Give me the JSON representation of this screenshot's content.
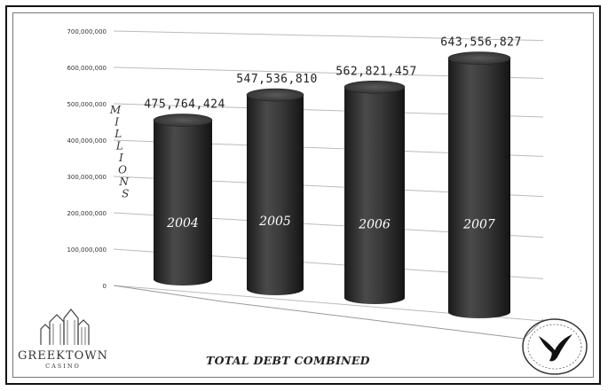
{
  "chart_data": {
    "type": "bar",
    "title": "TOTAL DEBT COMBINED",
    "ylabel": "MILLIONS",
    "categories": [
      "2004",
      "2005",
      "2006",
      "2007"
    ],
    "values": [
      475764424,
      547536810,
      562821457,
      643556827
    ],
    "value_labels": [
      "475,764,424",
      "547,536,810",
      "562,821,457",
      "643,556,827"
    ],
    "yticks": [
      "0",
      "100,000,000",
      "200,000,000",
      "300,000,000",
      "400,000,000",
      "500,000,000",
      "600,000,000",
      "700,000,000"
    ],
    "ylim": [
      0,
      700000000
    ],
    "grid": true,
    "bar_style": "3d-cylinder",
    "bar_color": "#3a3a3a"
  },
  "logo": {
    "name": "GREEKTOWN",
    "subname": "CASINO",
    "icon": "greektown-building-icon"
  },
  "seal": {
    "icon": "tribal-seal-bird-icon"
  }
}
